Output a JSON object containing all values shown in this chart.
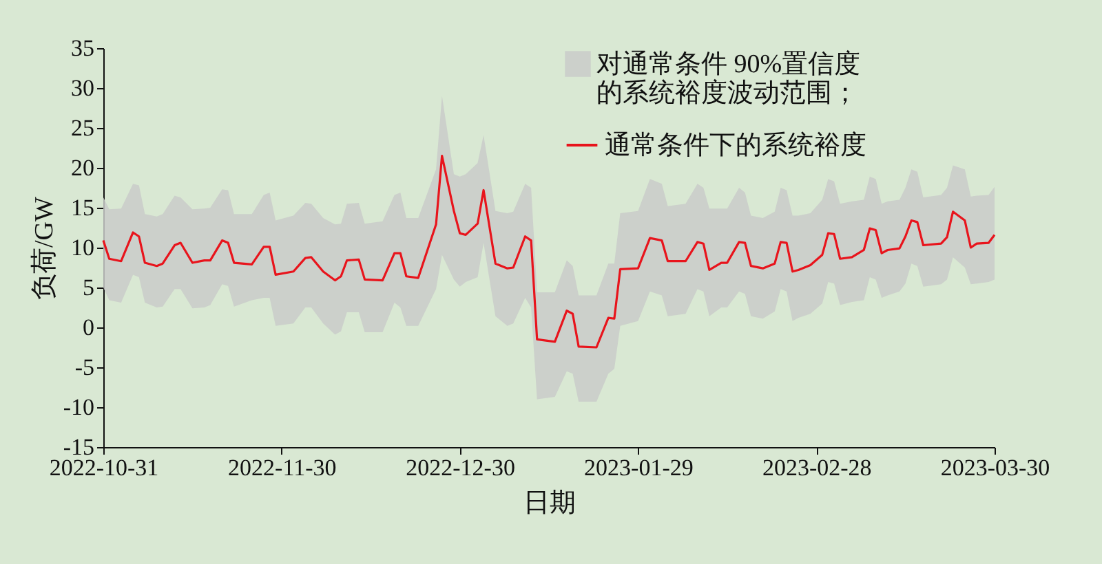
{
  "chart_data": {
    "type": "line",
    "xlabel": "日期",
    "ylabel": "负荷/GW",
    "annotations": [
      "对通常条件 90%置信度的系统裕度波动范围；"
    ],
    "x": [
      "2022-10-31",
      "2022-11-01",
      "2022-11-03",
      "2022-11-05",
      "2022-11-06",
      "2022-11-07",
      "2022-11-09",
      "2022-11-10",
      "2022-11-12",
      "2022-11-13",
      "2022-11-15",
      "2022-11-17",
      "2022-11-18",
      "2022-11-20",
      "2022-11-21",
      "2022-11-22",
      "2022-11-25",
      "2022-11-27",
      "2022-11-28",
      "2022-11-29",
      "2022-12-02",
      "2022-12-04",
      "2022-12-05",
      "2022-12-07",
      "2022-12-09",
      "2022-12-10",
      "2022-12-11",
      "2022-12-13",
      "2022-12-14",
      "2022-12-17",
      "2022-12-19",
      "2022-12-20",
      "2022-12-21",
      "2022-12-23",
      "2022-12-26",
      "2022-12-27",
      "2022-12-29",
      "2022-12-30",
      "2022-12-31",
      "2023-01-02",
      "2023-01-03",
      "2023-01-05",
      "2023-01-07",
      "2023-01-08",
      "2023-01-10",
      "2023-01-11",
      "2023-01-12",
      "2023-01-15",
      "2023-01-17",
      "2023-01-18",
      "2023-01-19",
      "2023-01-22",
      "2023-01-24",
      "2023-01-25",
      "2023-01-26",
      "2023-01-29",
      "2023-01-31",
      "2023-02-02",
      "2023-02-03",
      "2023-02-06",
      "2023-02-08",
      "2023-02-09",
      "2023-02-10",
      "2023-02-12",
      "2023-02-13",
      "2023-02-15",
      "2023-02-16",
      "2023-02-17",
      "2023-02-19",
      "2023-02-21",
      "2023-02-22",
      "2023-02-23",
      "2023-02-24",
      "2023-02-25",
      "2023-02-27",
      "2023-03-01",
      "2023-03-02",
      "2023-03-03",
      "2023-03-04",
      "2023-03-06",
      "2023-03-08",
      "2023-03-09",
      "2023-03-10",
      "2023-03-11",
      "2023-03-12",
      "2023-03-14",
      "2023-03-15",
      "2023-03-16",
      "2023-03-17",
      "2023-03-18",
      "2023-03-21",
      "2023-03-22",
      "2023-03-23",
      "2023-03-25",
      "2023-03-26",
      "2023-03-27",
      "2023-03-29",
      "2023-03-30"
    ],
    "series": [
      {
        "name": "通常条件下的系统裕度",
        "color": "#e8141c",
        "values": [
          10.9,
          8.6,
          8.3,
          11.9,
          11.4,
          8.1,
          7.7,
          8.0,
          10.3,
          10.6,
          8.1,
          8.4,
          8.4,
          10.9,
          10.6,
          8.1,
          7.9,
          10.1,
          10.1,
          6.6,
          7.0,
          8.7,
          8.8,
          7.0,
          5.9,
          6.4,
          8.4,
          8.5,
          6.0,
          5.9,
          9.3,
          9.3,
          6.4,
          6.2,
          12.9,
          21.5,
          14.6,
          11.8,
          11.6,
          13.0,
          17.2,
          8.0,
          7.4,
          7.5,
          11.4,
          10.9,
          -1.5,
          -1.8,
          2.1,
          1.7,
          -2.4,
          -2.5,
          1.2,
          1.1,
          7.3,
          7.4,
          11.2,
          10.9,
          8.3,
          8.3,
          10.7,
          10.5,
          7.2,
          8.1,
          8.1,
          10.7,
          10.6,
          7.7,
          7.4,
          8.0,
          10.7,
          10.6,
          7.0,
          7.2,
          7.8,
          9.1,
          11.8,
          11.7,
          8.6,
          8.8,
          9.7,
          12.4,
          12.2,
          9.3,
          9.7,
          9.9,
          11.4,
          13.4,
          13.2,
          10.3,
          10.5,
          11.3,
          14.5,
          13.4,
          10.0,
          10.5,
          10.6,
          11.6
        ],
        "lower": [
          5.0,
          3.4,
          3.1,
          6.6,
          6.3,
          3.1,
          2.5,
          2.6,
          4.8,
          4.8,
          2.4,
          2.5,
          2.8,
          5.4,
          5.2,
          2.6,
          3.4,
          3.7,
          3.7,
          0.2,
          0.5,
          2.5,
          2.5,
          0.5,
          -0.9,
          -0.5,
          1.9,
          1.9,
          -0.6,
          -0.6,
          3.1,
          2.5,
          0.2,
          0.2,
          4.8,
          9.1,
          6.0,
          5.1,
          5.7,
          6.3,
          10.6,
          1.4,
          0.2,
          0.5,
          3.7,
          2.5,
          -9.0,
          -8.7,
          -5.5,
          -5.8,
          -9.3,
          -9.3,
          -5.8,
          -5.2,
          0.2,
          0.8,
          4.5,
          4.0,
          1.4,
          1.7,
          4.8,
          4.5,
          1.4,
          2.5,
          2.5,
          4.5,
          4.2,
          1.4,
          1.1,
          2.0,
          4.8,
          4.5,
          0.8,
          1.2,
          1.7,
          3.0,
          5.7,
          5.5,
          2.8,
          3.2,
          3.4,
          6.3,
          6.0,
          3.7,
          4.0,
          4.5,
          5.5,
          8.0,
          7.7,
          5.1,
          5.4,
          6.0,
          8.8,
          7.5,
          5.4,
          5.5,
          5.7,
          6.0
        ],
        "upper": [
          16.3,
          14.8,
          14.9,
          18.0,
          17.8,
          14.2,
          13.9,
          14.2,
          16.5,
          16.3,
          14.8,
          14.9,
          15.0,
          17.3,
          17.2,
          14.2,
          14.2,
          16.6,
          16.9,
          13.4,
          14.0,
          15.6,
          15.5,
          13.7,
          12.9,
          13.0,
          15.5,
          15.6,
          13.0,
          13.3,
          16.6,
          16.9,
          13.7,
          13.7,
          19.8,
          29.0,
          19.2,
          18.9,
          19.2,
          20.6,
          24.1,
          14.6,
          14.3,
          14.5,
          18.0,
          17.5,
          4.4,
          4.4,
          8.4,
          7.7,
          4.0,
          4.0,
          8.0,
          8.0,
          14.3,
          14.6,
          18.6,
          18.0,
          15.2,
          15.5,
          18.0,
          17.5,
          14.9,
          14.9,
          14.9,
          17.5,
          16.9,
          14.0,
          13.7,
          14.5,
          17.5,
          17.2,
          14.0,
          14.0,
          14.3,
          16.0,
          18.6,
          18.3,
          15.5,
          15.8,
          16.0,
          18.9,
          18.6,
          15.5,
          15.8,
          16.0,
          17.5,
          19.8,
          19.5,
          16.3,
          16.6,
          17.5,
          20.3,
          19.8,
          16.4,
          16.5,
          16.6,
          17.6
        ]
      }
    ],
    "xlim": [
      "2022-10-31",
      "2023-03-30"
    ],
    "xticks": [
      "2022-10-31",
      "2022-11-30",
      "2022-12-30",
      "2023-01-29",
      "2023-02-28",
      "2023-03-30"
    ],
    "ylim": [
      -15,
      35
    ],
    "yticks": [
      -15,
      -10,
      -5,
      0,
      5,
      10,
      15,
      20,
      25,
      30,
      35
    ],
    "legend": "top right"
  }
}
